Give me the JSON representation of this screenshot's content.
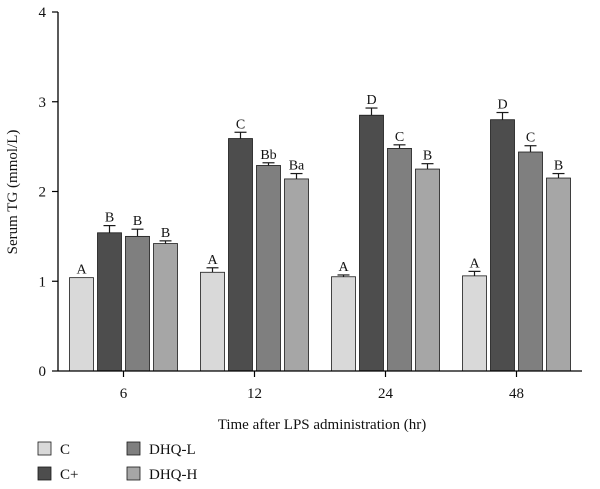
{
  "chart_data": {
    "type": "bar",
    "xlabel": "Time after LPS administration (hr)",
    "ylabel": "Serum TG (mmol/L)",
    "ylim": [
      0,
      4
    ],
    "yticks": [
      0,
      1,
      2,
      3,
      4
    ],
    "categories": [
      "6",
      "12",
      "24",
      "48"
    ],
    "grid": false,
    "legend_position": "bottom-left",
    "series": [
      {
        "name": "C",
        "color": "#d9d9d9",
        "values": [
          1.04,
          1.1,
          1.05,
          1.06
        ],
        "errors": [
          0.0,
          0.05,
          0.02,
          0.05
        ],
        "labels": [
          "A",
          "A",
          "A",
          "A"
        ]
      },
      {
        "name": "C+",
        "color": "#4d4d4d",
        "values": [
          1.54,
          2.59,
          2.85,
          2.8
        ],
        "errors": [
          0.08,
          0.07,
          0.08,
          0.08
        ],
        "labels": [
          "B",
          "C",
          "D",
          "D"
        ]
      },
      {
        "name": "DHQ-L",
        "color": "#7f7f7f",
        "values": [
          1.5,
          2.29,
          2.48,
          2.44
        ],
        "errors": [
          0.08,
          0.03,
          0.04,
          0.07
        ],
        "labels": [
          "B",
          "Bb",
          "C",
          "C"
        ]
      },
      {
        "name": "DHQ-H",
        "color": "#a6a6a6",
        "values": [
          1.42,
          2.14,
          2.25,
          2.15
        ],
        "errors": [
          0.03,
          0.06,
          0.06,
          0.05
        ],
        "labels": [
          "B",
          "Ba",
          "B",
          "B"
        ]
      }
    ]
  }
}
